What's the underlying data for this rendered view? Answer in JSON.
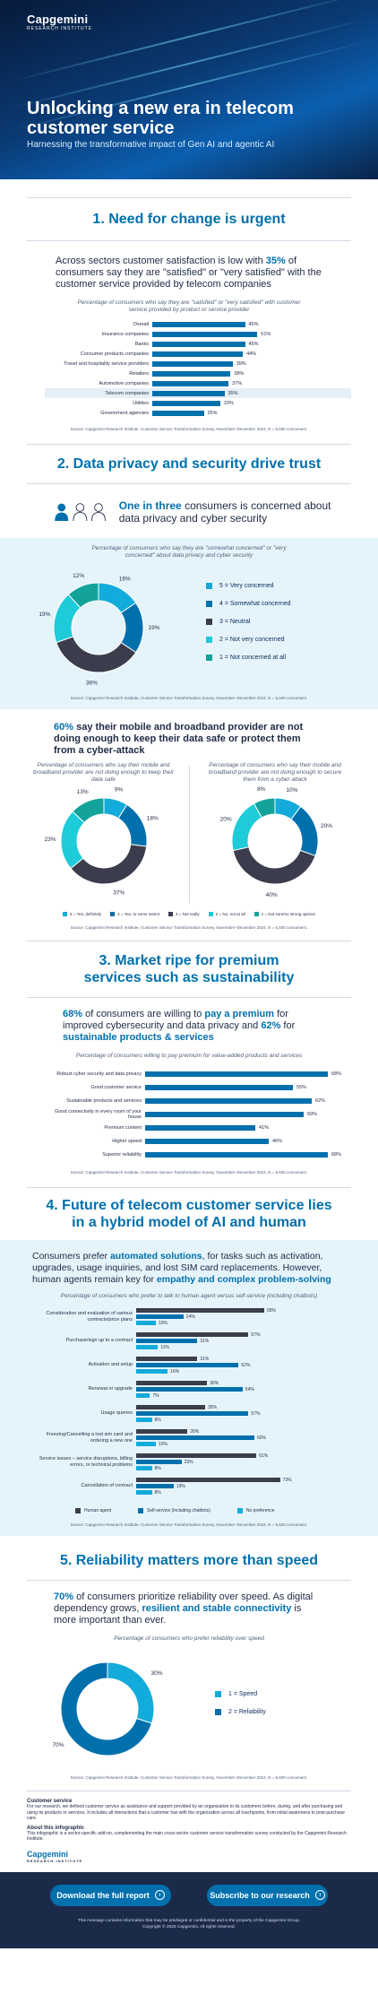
{
  "brand": {
    "name": "Capgemini",
    "sub": "RESEARCH INSTITUTE",
    "footer_sub": "RESEARCH INSTITUTE"
  },
  "hero": {
    "title": "Unlocking a new era in telecom customer service",
    "tagline": "Harnessing the transformative impact of Gen AI and agentic AI"
  },
  "colors": {
    "primary": "#0070ad",
    "dark": "#3b3c4c",
    "teal": "#12abdb",
    "cyan": "#1ecbd8",
    "navy": "#0b2a59"
  },
  "s1": {
    "title": "1.  Need for change is urgent",
    "lead_pre": "Across sectors customer satisfaction is low with ",
    "lead_pct": "35%",
    "lead_post": " of consumers say they are \"satisfied\" or \"very satisfied\" with the customer service provided by telecom companies",
    "caption": "Percentage of consumers who say they are \"satisfied\" or \"very satisfied\" with customer service provided by product or service provider",
    "chart_data": {
      "type": "bar",
      "categories": [
        "Overall",
        "Insurance companies",
        "Banks",
        "Consumer products companies",
        "Travel and hospitality service providers",
        "Retailers",
        "Automotive companies",
        "Telecom companies",
        "Utilities",
        "Government agencies"
      ],
      "values": [
        45,
        51,
        45,
        44,
        39,
        38,
        37,
        35,
        33,
        25
      ],
      "labels": [
        "45%",
        "51%",
        "45%",
        "44%",
        "39%",
        "38%",
        "37%",
        "35%",
        "33%",
        "25%"
      ]
    },
    "source": "Source: Capgemini Research Institute, Customer Service Transformation Survey, November–December 2024, N = 5,500 consumers."
  },
  "s2": {
    "title": "2.  Data privacy and security drive trust",
    "lead_strong": "One in three",
    "lead_rest": " consumers is concerned about data privacy and cyber security",
    "caption": "Percentage of consumers who say they are \"somewhat concerned\" or \"very concerned\" about data privacy and cyber security",
    "chart_data": {
      "type": "pie",
      "labels": [
        "5 = Very concerned",
        "4 = Somewhat concerned",
        "3 = Neutral",
        "2 = Not very concerned",
        "1 = Not concerned at all"
      ],
      "values": [
        16,
        19,
        36,
        19,
        12
      ],
      "value_labels": [
        "16%",
        "19%",
        "36%",
        "19%",
        "12%"
      ]
    },
    "source": "Source: Capgemini Research Institute, Customer Service Transformation Survey, November–December 2024, N = 5,500 consumers.",
    "lead2_pct": "60%",
    "lead2_rest": " say their mobile and broadband provider are not doing enough to keep their data safe or protect them from a cyber-attack",
    "left_caption": "Percentage of consumers who say their mobile and broadband provider are not doing enough to keep their data safe",
    "right_caption": "Percentage of consumers who say their mobile and broadband provider are not doing enough to secure them from a cyber attack",
    "left_chart": {
      "type": "pie",
      "values": [
        9,
        18,
        37,
        23,
        13
      ],
      "value_labels": [
        "9%",
        "18%",
        "37%",
        "23%",
        "13%"
      ]
    },
    "right_chart": {
      "type": "pie",
      "values": [
        10,
        20,
        40,
        20,
        8
      ],
      "value_labels": [
        "10%",
        "20%",
        "40%",
        "20%",
        "8%"
      ]
    },
    "legend2": [
      "5 = Yes, definitely",
      "4 = Yes, to some extent",
      "3 = Not really",
      "2 = No, not at all",
      "1 = Not sure/no strong opinion"
    ],
    "source2": "Source: Capgemini Research Institute, Customer Service Transformation Survey, November–December 2024, N = 5,500 consumers."
  },
  "s3": {
    "title": "3.  Market ripe for premium services such as sustainability",
    "lead_pct": "68%",
    "lead_mid": " of consumers are willing to ",
    "lead_strong": "pay a premium",
    "lead_mid2": " for improved cybersecurity and data privacy and ",
    "lead_pct2": "62%",
    "lead_post": " for ",
    "lead_strong2": "sustainable products & services",
    "caption": "Percentage of consumers willing to pay premium for value-added products and services",
    "chart_data": {
      "type": "bar",
      "categories": [
        "Robust cyber security and data privacy",
        "Good customer service",
        "Sustainable products and services",
        "Good connectivity in every room of your house",
        "Premium content",
        "Higher speed",
        "Superior reliability"
      ],
      "values": [
        68,
        55,
        62,
        59,
        41,
        46,
        68
      ],
      "labels": [
        "68%",
        "55%",
        "62%",
        "59%",
        "41%",
        "46%",
        "68%"
      ]
    },
    "source": "Source: Capgemini Research Institute, Customer Service Transformation Survey, November–December 2024, N = 5,500 consumers."
  },
  "s4": {
    "title": "4.  Future of telecom customer service lies in a hybrid model of AI and human",
    "lead_pre": "Consumers prefer ",
    "lead_strong": "automated solutions",
    "lead_mid": ", for tasks such as activation, upgrades, usage inquiries, and lost SIM card replacements. However, human agents remain key for ",
    "lead_strong2": "empathy and complex problem-solving",
    "caption": "Percentage of consumers who prefer to talk to human agent versus self-service (including chatbots)",
    "chart_data": {
      "type": "bar",
      "categories": [
        "Consideration and evaluation of various contracts/price plans",
        "Purchase/sign up to a contract",
        "Activation and setup",
        "Renewal or upgrade",
        "Usage queries",
        "Freezing/Cancelling a lost sim card and ordering a new one",
        "Service issues – service disruptions, billing errors, or technical problems",
        "Cancellation of contract"
      ],
      "series": [
        {
          "name": "Human agent",
          "values": [
            65,
            57,
            31,
            36,
            35,
            26,
            61,
            73
          ],
          "labels": [
            "65%",
            "57%",
            "31%",
            "36%",
            "35%",
            "26%",
            "61%",
            "73%"
          ]
        },
        {
          "name": "Self-service (including chatbots)",
          "values": [
            24,
            31,
            52,
            54,
            57,
            60,
            23,
            19
          ],
          "labels": [
            "24%",
            "31%",
            "52%",
            "54%",
            "57%",
            "60%",
            "23%",
            "19%"
          ]
        },
        {
          "name": "No preference",
          "values": [
            10,
            11,
            16,
            7,
            8,
            10,
            8,
            8
          ],
          "labels": [
            "10%",
            "11%",
            "16%",
            "7%",
            "8%",
            "10%",
            "8%",
            "8%"
          ]
        }
      ]
    },
    "source": "Source: Capgemini Research Institute, Customer Service Transformation Survey, November–December 2024, N = 5,500 consumers."
  },
  "s5": {
    "title": "5.  Reliability matters more than speed",
    "lead_pct": "70%",
    "lead_mid": " of consumers prioritize reliability over speed. As digital dependency grows, ",
    "lead_strong": "resilient and stable connectivity",
    "lead_post": " is more important than ever.",
    "caption": "Percentage of consumers who prefer reliability over speed",
    "chart_data": {
      "type": "pie",
      "labels": [
        "1 = Speed",
        "2 = Reliability"
      ],
      "values": [
        30,
        70
      ],
      "value_labels": [
        "30%",
        "70%"
      ]
    },
    "source": "Source: Capgemini Research Institute, Customer Service Transformation Survey, November–December 2024, N = 5,500 consumers."
  },
  "notes": {
    "h1": "Customer service",
    "p1": "For our research, we defined customer service as assistance and support provided by an organization to its customers before, during, and after purchasing and using its products or services. It includes all interactions that a customer has with the organization across all touchpoints, from initial awareness to post-purchase care.",
    "h2": "About this infographic",
    "p2": "This infographic is a sector-specific add-on, complementing the main cross-sector customer service transformation survey conducted by the Capgemini Research Institute."
  },
  "footer": {
    "btn1": "Download the full report",
    "btn2": "Subscribe to our research",
    "legal": "This message contains information that may be privileged or confidential and is the property of the Capgemini Group.",
    "copyright": "Copyright © 2025 Capgemini. All rights reserved."
  }
}
